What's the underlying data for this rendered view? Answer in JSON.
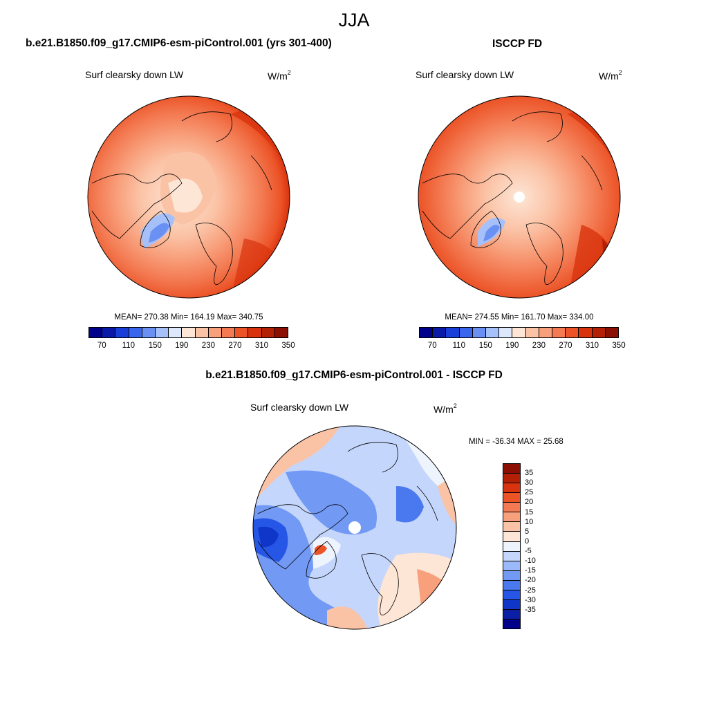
{
  "season": "JJA",
  "panels": [
    {
      "title": "b.e21.B1850.f09_g17.CMIP6-esm-piControl.001 (yrs 301-400)",
      "variable": "Surf clearsky down LW",
      "units": "W/m",
      "units_exp": "2",
      "stats": "MEAN= 270.38  Min= 164.19  Max= 340.75",
      "missing_pole": false
    },
    {
      "title": "ISCCP FD",
      "variable": "Surf clearsky down LW",
      "units": "W/m",
      "units_exp": "2",
      "stats": "MEAN= 274.55  Min= 161.70  Max= 334.00",
      "missing_pole": true
    }
  ],
  "abs_colorbar": {
    "colors": [
      "#00008b",
      "#0a1aa8",
      "#1a3fd8",
      "#3a66ee",
      "#6a90f4",
      "#a6c0fa",
      "#dde8fc",
      "#fde6d6",
      "#fbc3a6",
      "#f8a07c",
      "#f37a52",
      "#ec5428",
      "#d8330e",
      "#b32005",
      "#8b0f03"
    ],
    "tick_labels": [
      "70",
      "110",
      "150",
      "190",
      "230",
      "270",
      "310",
      "350"
    ]
  },
  "diff_panel": {
    "title": "b.e21.B1850.f09_g17.CMIP6-esm-piControl.001 - ISCCP FD",
    "variable": "Surf clearsky down LW",
    "units": "W/m",
    "units_exp": "2",
    "stats": "MIN = -36.34 MAX =  25.68",
    "colorbar": {
      "colors": [
        "#8b0f03",
        "#b32005",
        "#d8330e",
        "#ec5428",
        "#f37a52",
        "#f8a07c",
        "#fbc3a6",
        "#fde6d6",
        "#eef4fd",
        "#c4d6fb",
        "#9bb8f8",
        "#7299f4",
        "#4a78ee",
        "#2656e6",
        "#0f36c9",
        "#0a1fa6",
        "#00008b"
      ],
      "tick_labels": [
        "35",
        "30",
        "25",
        "20",
        "15",
        "10",
        "5",
        "0",
        "-5",
        "-10",
        "-15",
        "-20",
        "-25",
        "-30",
        "-35"
      ]
    }
  }
}
